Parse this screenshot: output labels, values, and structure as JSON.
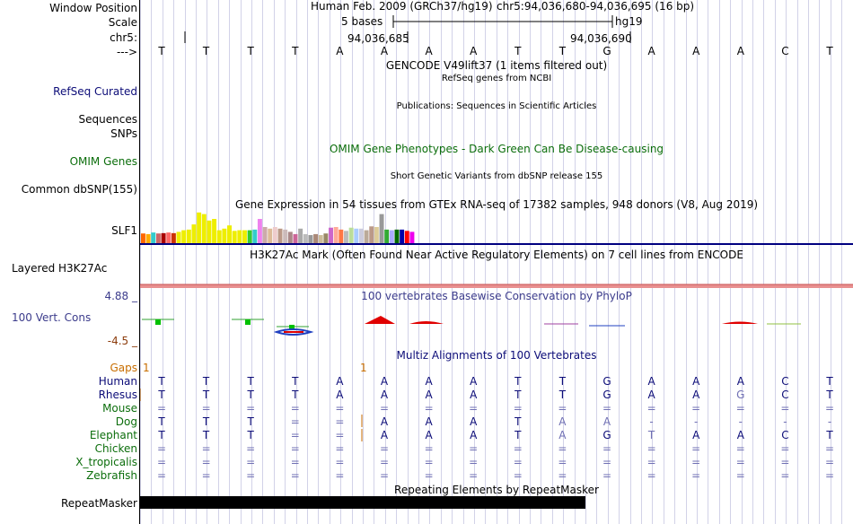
{
  "labels": {
    "window_position": "Window Position",
    "scale": "Scale",
    "chrom": "chr5:",
    "strand": "--->",
    "refseq": "RefSeq Curated",
    "sequences": "Sequences",
    "snps": "SNPs",
    "omim": "OMIM Genes",
    "dbsnp": "Common dbSNP(155)",
    "slf1": "SLF1",
    "h3k27ac": "Layered H3K27Ac",
    "cons_max": "4.88 _",
    "cons": "100 Vert. Cons",
    "cons_min": "-4.5 _",
    "gaps": "Gaps",
    "repeatmasker": "RepeatMasker"
  },
  "header": {
    "assembly": "Human Feb. 2009 (GRCh37/hg19)",
    "position": "chr5:94,036,680-94,036,695 (16 bp)",
    "scale_label": "5 bases",
    "scale_db": "hg19",
    "tick1": "94,036,685",
    "tick2": "94,036,690"
  },
  "track_titles": {
    "gencode": "GENCODE V49lift37 (1 items filtered out)",
    "refseq": "RefSeq genes from NCBI",
    "publications": "Publications: Sequences in Scientific Articles",
    "omim": "OMIM Gene Phenotypes - Dark Green Can Be Disease-causing",
    "dbsnp": "Short Genetic Variants from dbSNP release 155",
    "gtex": "Gene Expression in 54 tissues from GTEx RNA-seq of 17382 samples, 948 donors (V8, Aug 2019)",
    "h3k27ac": "H3K27Ac Mark (Often Found Near Active Regulatory Elements) on 7 cell lines from ENCODE",
    "cons": "100 vertebrates Basewise Conservation by PhyloP",
    "multiz": "Multiz Alignments of 100 Vertebrates",
    "repeatmasker": "Repeating Elements by RepeatMasker"
  },
  "sequence": [
    "T",
    "T",
    "T",
    "T",
    "A",
    "A",
    "A",
    "A",
    "T",
    "T",
    "G",
    "A",
    "A",
    "A",
    "C",
    "T"
  ],
  "gaps_marks": [
    "1",
    "1"
  ],
  "species": [
    {
      "name": "Human",
      "bases": [
        "T",
        "T",
        "T",
        "T",
        "A",
        "A",
        "A",
        "A",
        "T",
        "T",
        "G",
        "A",
        "A",
        "A",
        "C",
        "T"
      ]
    },
    {
      "name": "Rhesus",
      "bases": [
        "T",
        "T",
        "T",
        "T",
        "A",
        "A",
        "A",
        "A",
        "T",
        "T",
        "G",
        "A",
        "A",
        "G",
        "C",
        "T"
      ]
    },
    {
      "name": "Mouse",
      "bases": [
        "=",
        "=",
        "=",
        "=",
        "=",
        "=",
        "=",
        "=",
        "=",
        "=",
        "=",
        "=",
        "=",
        "=",
        "=",
        "="
      ]
    },
    {
      "name": "Dog",
      "bases": [
        "T",
        "T",
        "T",
        "=",
        "=",
        "A",
        "A",
        "A",
        "T",
        "A",
        "A",
        "-",
        "-",
        "-",
        "-",
        "-"
      ]
    },
    {
      "name": "Elephant",
      "bases": [
        "T",
        "T",
        "T",
        "=",
        "=",
        "A",
        "A",
        "A",
        "T",
        "A",
        "G",
        "T",
        "A",
        "A",
        "C",
        "T"
      ]
    },
    {
      "name": "Chicken",
      "bases": [
        "=",
        "=",
        "=",
        "=",
        "=",
        "=",
        "=",
        "=",
        "=",
        "=",
        "=",
        "=",
        "=",
        "=",
        "=",
        "="
      ]
    },
    {
      "name": "X_tropicalis",
      "bases": [
        "=",
        "=",
        "=",
        "=",
        "=",
        "=",
        "=",
        "=",
        "=",
        "=",
        "=",
        "=",
        "=",
        "=",
        "=",
        "="
      ]
    },
    {
      "name": "Zebrafish",
      "bases": [
        "=",
        "=",
        "=",
        "=",
        "=",
        "=",
        "=",
        "=",
        "=",
        "=",
        "=",
        "=",
        "=",
        "=",
        "=",
        "="
      ]
    }
  ],
  "gtex_bars": [
    {
      "v": 0.3,
      "c": "#ff6600"
    },
    {
      "v": 0.28,
      "c": "#ffaa00"
    },
    {
      "v": 0.33,
      "c": "#33cccc"
    },
    {
      "v": 0.3,
      "c": "#cc6666"
    },
    {
      "v": 0.31,
      "c": "#aa0000"
    },
    {
      "v": 0.33,
      "c": "#ff6666"
    },
    {
      "v": 0.31,
      "c": "#cc3300"
    },
    {
      "v": 0.35,
      "c": "#eeee00"
    },
    {
      "v": 0.4,
      "c": "#eeee00"
    },
    {
      "v": 0.42,
      "c": "#eeee00"
    },
    {
      "v": 0.58,
      "c": "#eeee00"
    },
    {
      "v": 0.95,
      "c": "#eeee00"
    },
    {
      "v": 0.9,
      "c": "#eeee00"
    },
    {
      "v": 0.7,
      "c": "#eeee00"
    },
    {
      "v": 0.75,
      "c": "#eeee00"
    },
    {
      "v": 0.4,
      "c": "#eeee00"
    },
    {
      "v": 0.45,
      "c": "#eeee00"
    },
    {
      "v": 0.55,
      "c": "#eeee00"
    },
    {
      "v": 0.38,
      "c": "#eeee00"
    },
    {
      "v": 0.4,
      "c": "#eeee00"
    },
    {
      "v": 0.4,
      "c": "#eeee00"
    },
    {
      "v": 0.4,
      "c": "#33cc33"
    },
    {
      "v": 0.42,
      "c": "#33cccc"
    },
    {
      "v": 0.75,
      "c": "#ee82ee"
    },
    {
      "v": 0.5,
      "c": "#ccaaaa"
    },
    {
      "v": 0.45,
      "c": "#ddbb99"
    },
    {
      "v": 0.5,
      "c": "#eecccc"
    },
    {
      "v": 0.45,
      "c": "#bb9988"
    },
    {
      "v": 0.42,
      "c": "#ccbbbb"
    },
    {
      "v": 0.35,
      "c": "#aa8888"
    },
    {
      "v": 0.28,
      "c": "#cc6699"
    },
    {
      "v": 0.45,
      "c": "#aaaaaa"
    },
    {
      "v": 0.28,
      "c": "#bbbbbb"
    },
    {
      "v": 0.25,
      "c": "#999999"
    },
    {
      "v": 0.28,
      "c": "#aa8877"
    },
    {
      "v": 0.25,
      "c": "#ccbb99"
    },
    {
      "v": 0.3,
      "c": "#998866"
    },
    {
      "v": 0.48,
      "c": "#cc66cc"
    },
    {
      "v": 0.5,
      "c": "#ffaa99"
    },
    {
      "v": 0.42,
      "c": "#ff7744"
    },
    {
      "v": 0.38,
      "c": "#bbbbbb"
    },
    {
      "v": 0.48,
      "c": "#bbdd99"
    },
    {
      "v": 0.45,
      "c": "#aaccff"
    },
    {
      "v": 0.45,
      "c": "#ccccdd"
    },
    {
      "v": 0.4,
      "c": "#bbaa99"
    },
    {
      "v": 0.52,
      "c": "#bb9988"
    },
    {
      "v": 0.5,
      "c": "#ddcc99"
    },
    {
      "v": 0.9,
      "c": "#999999"
    },
    {
      "v": 0.42,
      "c": "#33aa33"
    },
    {
      "v": 0.4,
      "c": "#aaaaff"
    },
    {
      "v": 0.42,
      "c": "#006600"
    },
    {
      "v": 0.42,
      "c": "#0000aa"
    },
    {
      "v": 0.38,
      "c": "#ff0000"
    },
    {
      "v": 0.35,
      "c": "#ee00ee"
    }
  ],
  "colors": {
    "navy": "#0c0c78",
    "omim_green": "#0c6e0c",
    "gtex_line": "#000080",
    "h3k_band": "#e89090",
    "cons_pos": "#e00000",
    "cons_neg": "#2040c0",
    "gap_orange": "#c86e00"
  }
}
